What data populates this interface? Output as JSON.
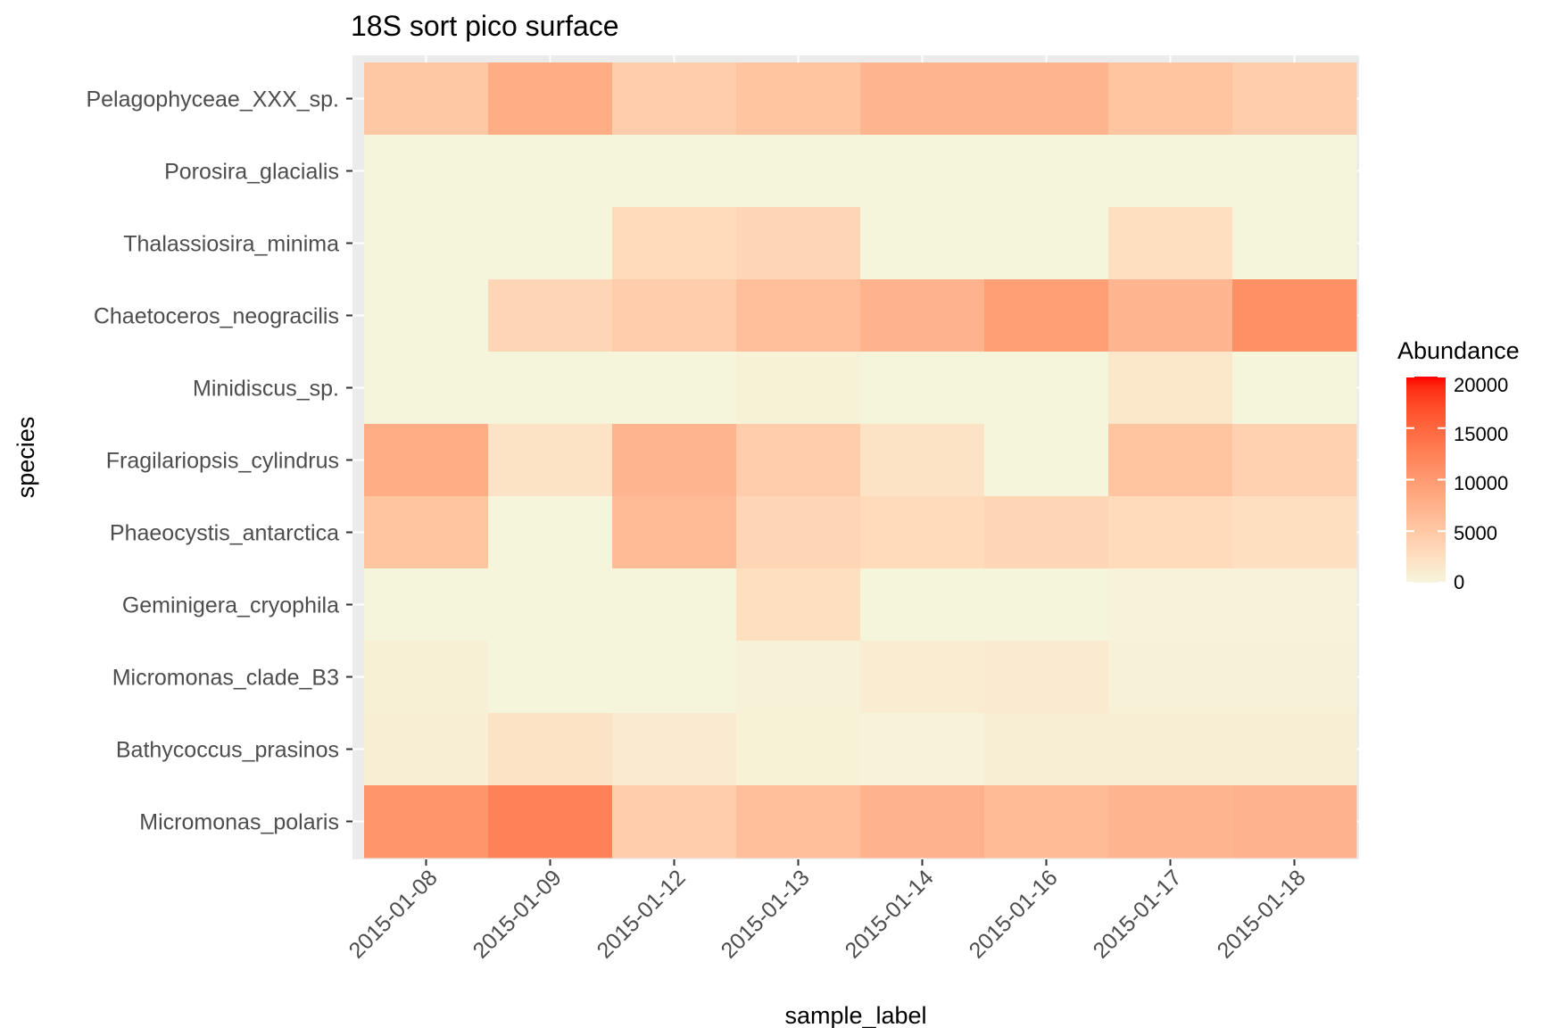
{
  "chart_data": {
    "type": "heatmap",
    "title": "18S sort pico surface",
    "xlabel": "sample_label",
    "ylabel": "species",
    "x": [
      "2015-01-08",
      "2015-01-09",
      "2015-01-12",
      "2015-01-13",
      "2015-01-14",
      "2015-01-16",
      "2015-01-17",
      "2015-01-18"
    ],
    "y": [
      "Pelagophyceae_XXX_sp.",
      "Porosira_glacialis",
      "Thalassiosira_minima",
      "Chaetoceros_neogracilis",
      "Minidiscus_sp.",
      "Fragilariopsis_cylindrus",
      "Phaeocystis_antarctica",
      "Geminigera_cryophila",
      "Micromonas_clade_B3",
      "Bathycoccus_prasinos",
      "Micromonas_polaris"
    ],
    "values": [
      [
        5000,
        8000,
        4500,
        5500,
        7000,
        7000,
        5500,
        4500
      ],
      [
        0,
        0,
        0,
        0,
        0,
        0,
        0,
        0
      ],
      [
        0,
        0,
        3000,
        3500,
        0,
        0,
        2500,
        0
      ],
      [
        0,
        3500,
        4500,
        6000,
        7500,
        9500,
        7000,
        11000
      ],
      [
        0,
        0,
        0,
        500,
        0,
        0,
        1500,
        0
      ],
      [
        8000,
        2000,
        7000,
        4500,
        2000,
        0,
        5500,
        4000
      ],
      [
        5500,
        0,
        6500,
        3500,
        3000,
        3500,
        3000,
        2500
      ],
      [
        0,
        0,
        0,
        2500,
        0,
        0,
        200,
        200
      ],
      [
        600,
        0,
        0,
        400,
        1000,
        1200,
        400,
        400
      ],
      [
        800,
        2000,
        1200,
        500,
        200,
        800,
        800,
        800
      ],
      [
        10500,
        12500,
        4500,
        6000,
        7500,
        6500,
        7000,
        7500
      ]
    ],
    "color_scale": {
      "low": "#f5f5dc",
      "high": "#ff0000",
      "limits": [
        0,
        20000
      ]
    },
    "legend": {
      "title": "Abundance",
      "breaks": [
        0,
        5000,
        10000,
        15000,
        20000
      ],
      "labels": [
        "0",
        "5000",
        "10000",
        "15000",
        "20000"
      ],
      "position": "right"
    },
    "panel_background": "#ebebeb"
  }
}
